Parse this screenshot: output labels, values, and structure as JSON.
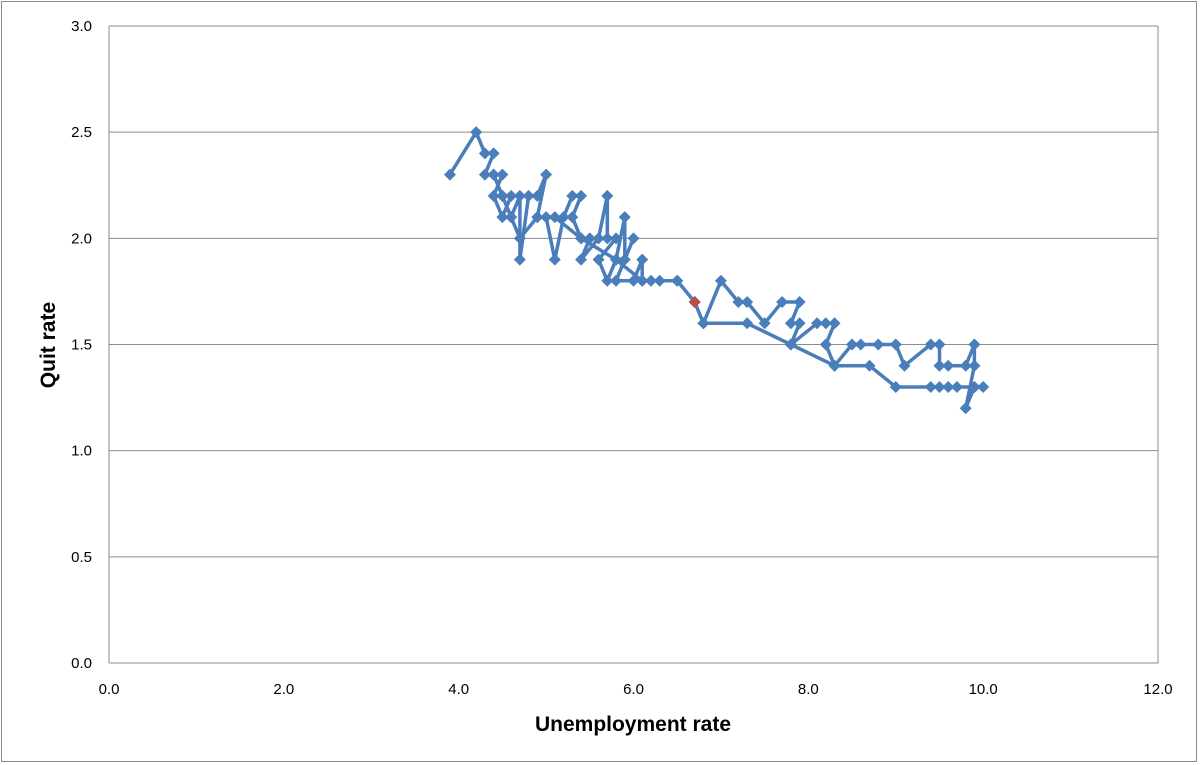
{
  "chart_data": {
    "type": "line",
    "xlabel": "Unemployment rate",
    "ylabel": "Quit rate",
    "xlim": [
      0,
      12
    ],
    "ylim": [
      0,
      3
    ],
    "xticks": [
      "0.0",
      "2.0",
      "4.0",
      "6.0",
      "8.0",
      "10.0",
      "12.0"
    ],
    "yticks": [
      "0.0",
      "0.5",
      "1.0",
      "1.5",
      "2.0",
      "2.5",
      "3.0"
    ],
    "grid": "horizontal",
    "legend": "none",
    "series": [
      {
        "color": "#4a7ebb",
        "marker": "diamond",
        "points": [
          [
            3.9,
            2.3
          ],
          [
            4.2,
            2.5
          ],
          [
            4.3,
            2.4
          ],
          [
            4.4,
            2.4
          ],
          [
            4.3,
            2.3
          ],
          [
            4.4,
            2.3
          ],
          [
            4.5,
            2.3
          ],
          [
            4.4,
            2.2
          ],
          [
            4.5,
            2.1
          ],
          [
            4.6,
            2.2
          ],
          [
            4.5,
            2.2
          ],
          [
            4.6,
            2.1
          ],
          [
            4.7,
            2.2
          ],
          [
            4.7,
            1.9
          ],
          [
            4.8,
            2.2
          ],
          [
            4.9,
            2.2
          ],
          [
            5.0,
            2.3
          ],
          [
            4.9,
            2.1
          ],
          [
            5.0,
            2.1
          ],
          [
            5.1,
            1.9
          ],
          [
            5.2,
            2.1
          ],
          [
            5.3,
            2.2
          ],
          [
            5.4,
            2.2
          ],
          [
            5.3,
            2.1
          ],
          [
            5.4,
            2.0
          ],
          [
            5.5,
            2.0
          ],
          [
            5.4,
            1.9
          ],
          [
            5.6,
            2.0
          ],
          [
            5.7,
            2.2
          ],
          [
            5.7,
            2.0
          ],
          [
            5.8,
            2.0
          ],
          [
            5.6,
            1.9
          ],
          [
            5.7,
            1.8
          ],
          [
            5.8,
            1.9
          ],
          [
            5.9,
            2.1
          ],
          [
            5.9,
            1.9
          ],
          [
            6.0,
            2.0
          ],
          [
            5.8,
            1.8
          ],
          [
            6.0,
            1.8
          ],
          [
            6.1,
            1.9
          ],
          [
            6.1,
            1.8
          ],
          [
            6.2,
            1.8
          ],
          [
            6.3,
            1.8
          ],
          [
            6.5,
            1.8
          ],
          [
            6.7,
            1.7
          ],
          [
            6.8,
            1.6
          ],
          [
            7.0,
            1.8
          ],
          [
            7.2,
            1.7
          ],
          [
            7.3,
            1.7
          ],
          [
            7.5,
            1.6
          ],
          [
            7.7,
            1.7
          ],
          [
            7.9,
            1.7
          ],
          [
            7.8,
            1.6
          ],
          [
            7.9,
            1.6
          ],
          [
            7.8,
            1.5
          ],
          [
            8.1,
            1.6
          ],
          [
            8.2,
            1.6
          ],
          [
            8.3,
            1.6
          ],
          [
            8.2,
            1.5
          ],
          [
            8.3,
            1.4
          ],
          [
            8.5,
            1.5
          ],
          [
            8.6,
            1.5
          ],
          [
            8.8,
            1.5
          ],
          [
            9.0,
            1.5
          ],
          [
            9.1,
            1.4
          ],
          [
            9.4,
            1.5
          ],
          [
            9.5,
            1.5
          ],
          [
            9.5,
            1.4
          ],
          [
            9.6,
            1.4
          ],
          [
            9.8,
            1.4
          ],
          [
            9.9,
            1.5
          ],
          [
            9.9,
            1.4
          ],
          [
            9.8,
            1.2
          ],
          [
            9.9,
            1.3
          ],
          [
            10.0,
            1.3
          ],
          [
            9.9,
            1.3
          ],
          [
            9.7,
            1.3
          ],
          [
            9.6,
            1.3
          ],
          [
            9.5,
            1.3
          ],
          [
            9.4,
            1.3
          ],
          [
            9.0,
            1.3
          ],
          [
            8.7,
            1.4
          ],
          [
            8.3,
            1.4
          ],
          [
            7.8,
            1.5
          ],
          [
            7.3,
            1.6
          ],
          [
            6.8,
            1.6
          ],
          [
            6.7,
            1.7
          ],
          [
            6.5,
            1.8
          ],
          [
            6.1,
            1.8
          ],
          [
            5.8,
            1.9
          ],
          [
            5.4,
            2.0
          ],
          [
            5.1,
            2.1
          ],
          [
            4.9,
            2.1
          ],
          [
            4.7,
            2.0
          ],
          [
            4.6,
            2.1
          ],
          [
            4.5,
            2.2
          ],
          [
            4.4,
            2.3
          ]
        ],
        "highlight": {
          "point": [
            6.7,
            1.7
          ],
          "color": "#be4b48"
        }
      }
    ]
  }
}
